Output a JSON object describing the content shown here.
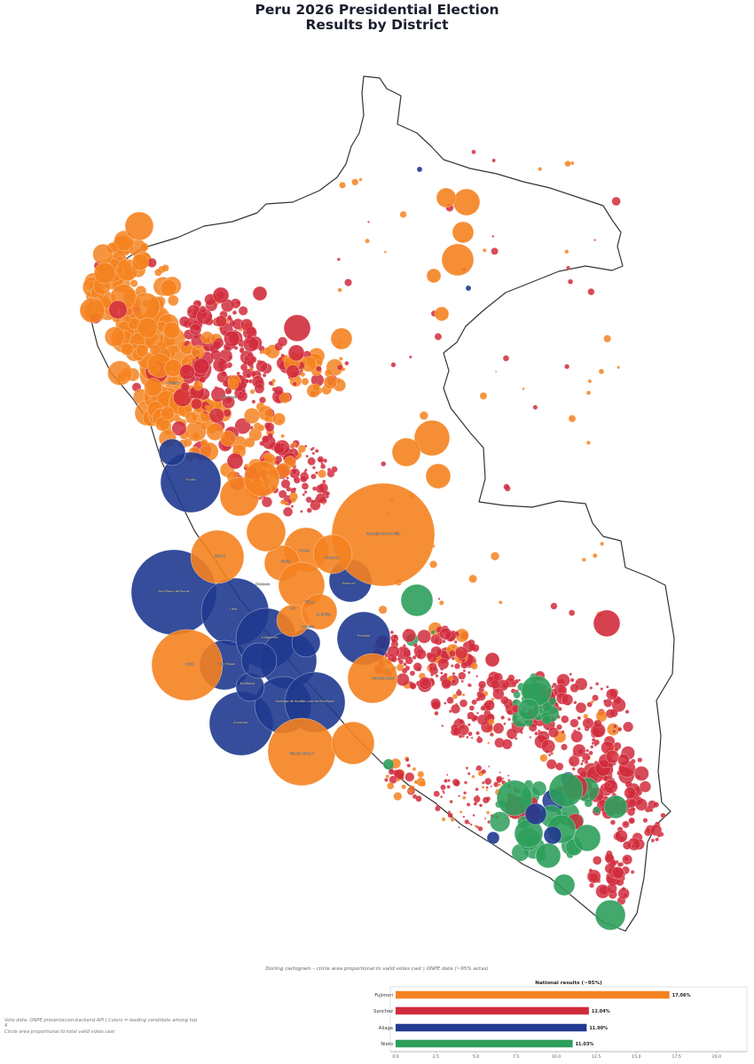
{
  "title_line1": "Peru 2026 Presidential Election",
  "title_line2": "Results by District",
  "caption": "Dorling cartogram  –  circle area proportional to valid votes cast  |  ONPE data (~95% actas)",
  "footnote_line1": "Vote data: ONPE presentacion-backend API  |  Colors = leading candidate among top 4",
  "footnote_line2": "Circle area proportional to total valid votes cast",
  "colors": {
    "Fujimori": "#f58220",
    "Sanchez": "#d12c3c",
    "Aliaga": "#1f3a8f",
    "Nieto": "#2e9e5b",
    "border": "#333333"
  },
  "map_labels": [
    "Chiclayo",
    "Cajamarca",
    "Trujillo",
    "Huaraz",
    "Chimbote",
    "Ucayali/Coronel Portillo",
    "Huancayo",
    "Tarma",
    "Huanuco",
    "San Martín de Porres",
    "Comas",
    "Lima",
    "Ate",
    "Callao",
    "San Miguel",
    "Miraflores",
    "Chorrillos",
    "Santiago de Surco",
    "San Juan de Miraflores",
    "Villa El Salvador",
    "Lurigancho",
    "Pucallpa",
    "Surquillo",
    "La Molina",
    "Huaral",
    "Cusco/Abancay"
  ],
  "chart_data": {
    "type": "bar",
    "orientation": "horizontal",
    "title": "National results (~95%)",
    "categories": [
      "Fujimori",
      "Sanchez",
      "Aliaga",
      "Nieto"
    ],
    "values": [
      17.06,
      12.04,
      11.9,
      11.03
    ],
    "value_labels": [
      "17.06%",
      "12.04%",
      "11.90%",
      "11.03%"
    ],
    "xlim": [
      0,
      21
    ],
    "xticks": [
      "0.0",
      "2.5",
      "5.0",
      "7.5",
      "10.0",
      "12.5",
      "15.0",
      "17.5",
      "20.0"
    ],
    "xtick_values": [
      0,
      2.5,
      5,
      7.5,
      10,
      12.5,
      15,
      17.5,
      20
    ],
    "grid": false
  }
}
